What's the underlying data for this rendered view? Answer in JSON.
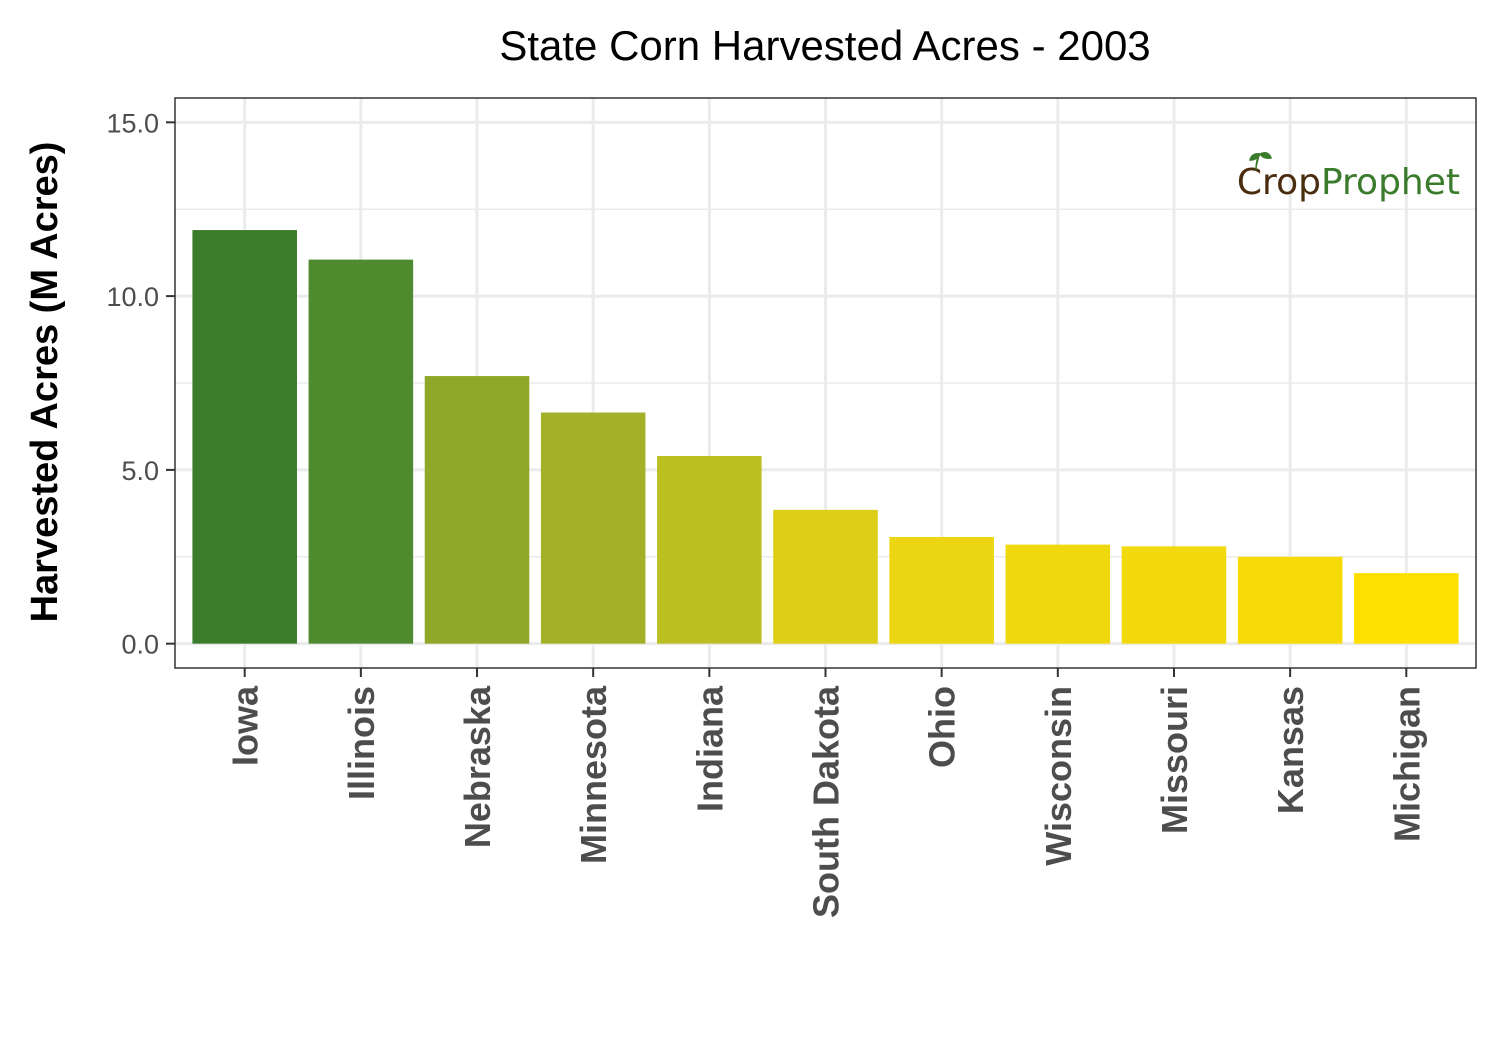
{
  "chart_data": {
    "type": "bar",
    "title": "State Corn Harvested Acres - 2003",
    "xlabel": "",
    "ylabel": "Harvested Acres (M Acres)",
    "ylim": [
      -0.7,
      15.7
    ],
    "yticks": [
      0,
      5,
      10,
      15
    ],
    "ytick_labels": [
      "0.0",
      "5.0",
      "10.0",
      "15.0"
    ],
    "grid": true,
    "legend": "none",
    "categories": [
      "Iowa",
      "Illinois",
      "Nebraska",
      "Minnesota",
      "Indiana",
      "South Dakota",
      "Ohio",
      "Wisconsin",
      "Missouri",
      "Kansas",
      "Michigan"
    ],
    "values": [
      11.9,
      11.05,
      7.7,
      6.65,
      5.4,
      3.85,
      3.07,
      2.85,
      2.8,
      2.5,
      2.03
    ],
    "colors": [
      "#3a7b2c",
      "#4e8a2e",
      "#91a72a",
      "#a4b027",
      "#bbbf22",
      "#ddcf18",
      "#ebd611",
      "#f0d80e",
      "#f1d90d",
      "#f6db08",
      "#ffdf00"
    ]
  },
  "logo": {
    "crop": "Crop",
    "prophet": "Prophet",
    "crop_color": "#4a2c0e",
    "prophet_color": "#3a7b2c"
  }
}
